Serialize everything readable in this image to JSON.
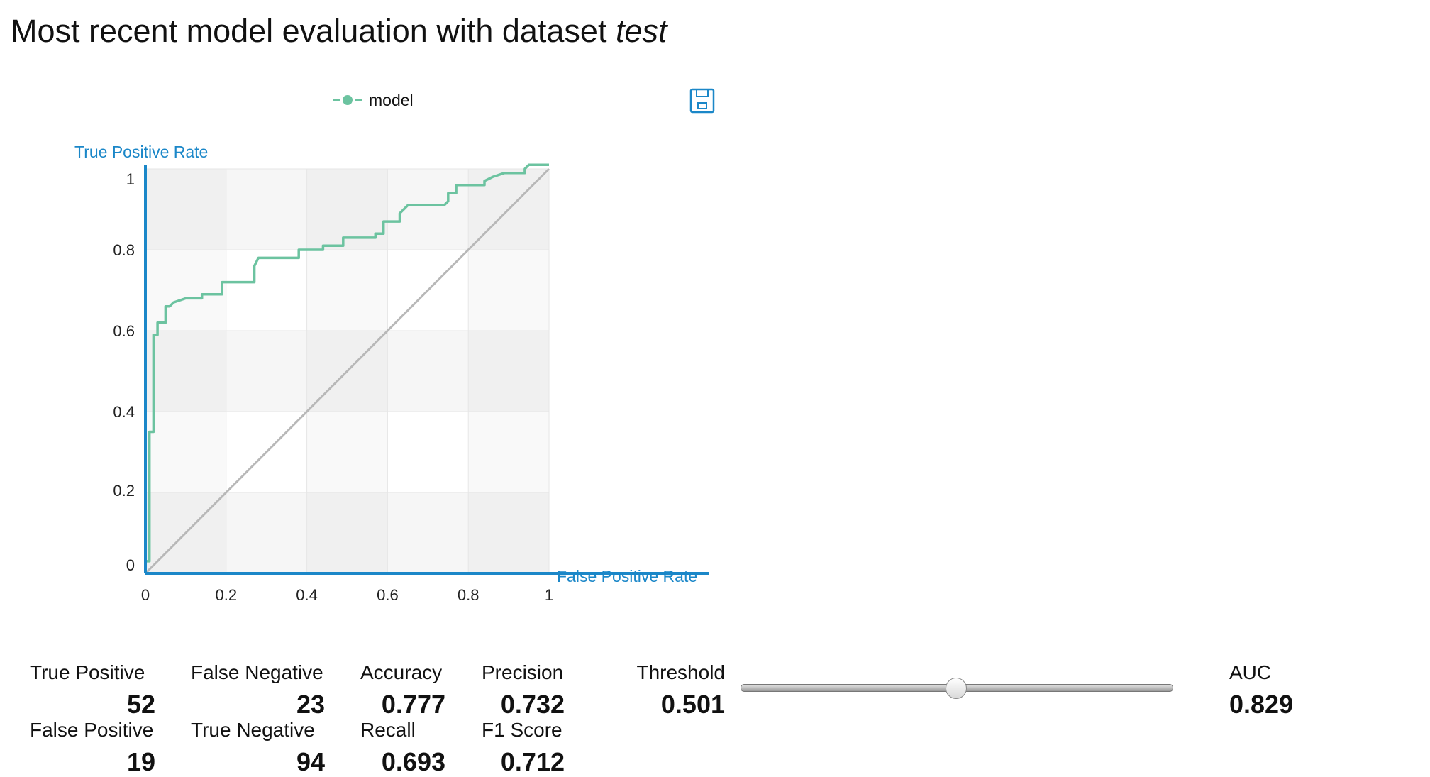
{
  "header": {
    "title_prefix": "Most recent model evaluation with dataset ",
    "dataset": "test"
  },
  "toolbar": {
    "save_icon": "floppy-disk-icon"
  },
  "chart_data": {
    "type": "line",
    "title": "",
    "xlabel": "False Positive Rate",
    "ylabel": "True Positive Rate",
    "xlim": [
      0,
      1
    ],
    "ylim": [
      0,
      1
    ],
    "xticks": [
      "0",
      "0.2",
      "0.4",
      "0.6",
      "0.8",
      "1"
    ],
    "yticks": [
      "0",
      "0.2",
      "0.4",
      "0.6",
      "0.8",
      "1"
    ],
    "grid": true,
    "legend": {
      "position": "top-center",
      "entries": [
        "model"
      ]
    },
    "colors": {
      "model": "#6cc3a0",
      "diagonal": "#b8b8b8",
      "axis": "#1b87c8"
    },
    "series": [
      {
        "name": "model",
        "x": [
          0,
          0,
          0.01,
          0.01,
          0.02,
          0.02,
          0.03,
          0.03,
          0.05,
          0.05,
          0.06,
          0.07,
          0.1,
          0.14,
          0.14,
          0.19,
          0.19,
          0.27,
          0.27,
          0.28,
          0.38,
          0.38,
          0.44,
          0.44,
          0.49,
          0.49,
          0.57,
          0.57,
          0.59,
          0.59,
          0.63,
          0.63,
          0.64,
          0.65,
          0.66,
          0.74,
          0.75,
          0.75,
          0.77,
          0.77,
          0.84,
          0.84,
          0.86,
          0.89,
          0.94,
          0.94,
          0.95,
          1.0
        ],
        "y": [
          0,
          0.03,
          0.03,
          0.35,
          0.35,
          0.59,
          0.59,
          0.62,
          0.62,
          0.66,
          0.66,
          0.67,
          0.68,
          0.68,
          0.69,
          0.69,
          0.72,
          0.72,
          0.76,
          0.78,
          0.78,
          0.8,
          0.8,
          0.81,
          0.81,
          0.83,
          0.83,
          0.84,
          0.84,
          0.87,
          0.87,
          0.89,
          0.9,
          0.91,
          0.91,
          0.91,
          0.92,
          0.94,
          0.94,
          0.96,
          0.96,
          0.97,
          0.98,
          0.99,
          0.99,
          1.0,
          1.01,
          1.01
        ]
      }
    ]
  },
  "metrics": {
    "true_positive": {
      "label": "True Positive",
      "value": "52"
    },
    "false_negative": {
      "label": "False Negative",
      "value": "23"
    },
    "false_positive": {
      "label": "False Positive",
      "value": "19"
    },
    "true_negative": {
      "label": "True Negative",
      "value": "94"
    },
    "accuracy": {
      "label": "Accuracy",
      "value": "0.777"
    },
    "recall": {
      "label": "Recall",
      "value": "0.693"
    },
    "precision": {
      "label": "Precision",
      "value": "0.732"
    },
    "f1": {
      "label": "F1 Score",
      "value": "0.712"
    },
    "threshold": {
      "label": "Threshold",
      "value": "0.501",
      "slider_fraction": 0.5
    },
    "auc": {
      "label": "AUC",
      "value": "0.829"
    }
  }
}
